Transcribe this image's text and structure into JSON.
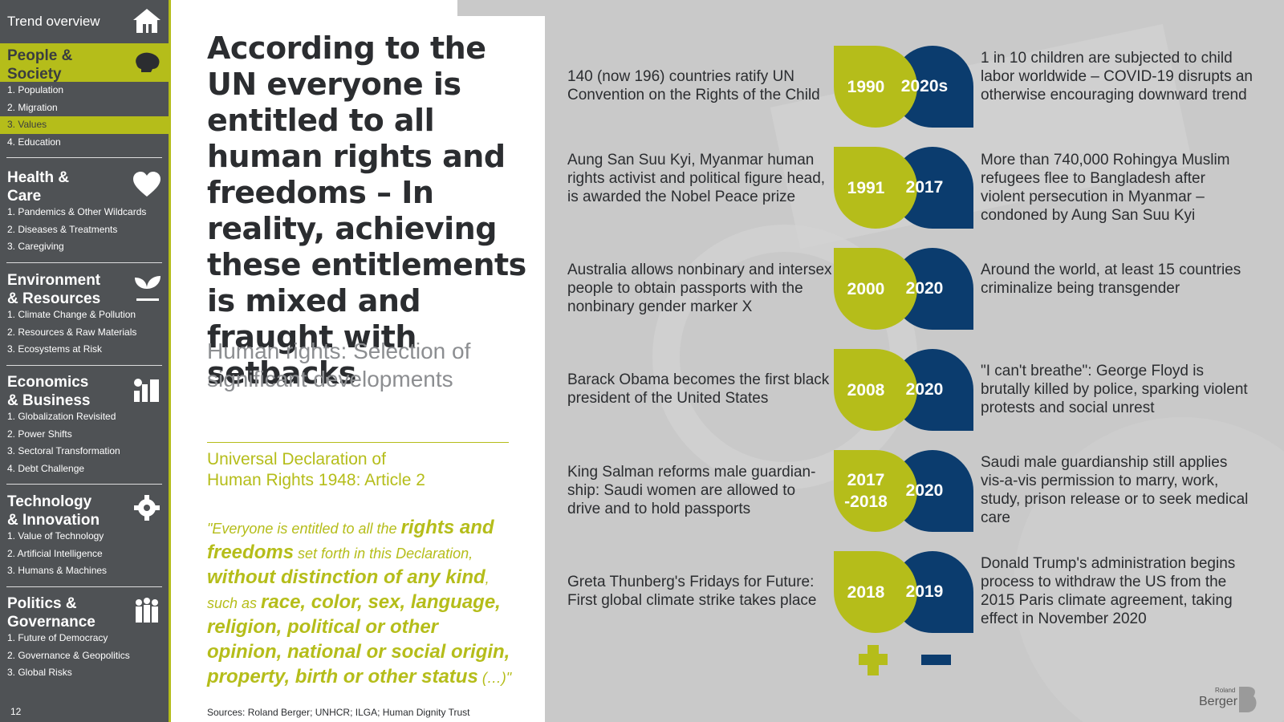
{
  "sidebar": {
    "top_label": "Trend overview",
    "page_number": "12",
    "sections": [
      {
        "title_1": "People &",
        "title_2": "Society",
        "icon": "head-icon",
        "items": [
          "1. Population",
          "2. Migration",
          "3. Values",
          "4. Education"
        ],
        "active_item": 2
      },
      {
        "title_1": "Health &",
        "title_2": "Care",
        "icon": "heart-icon",
        "items": [
          "1. Pandemics & Other Wildcards",
          "2. Diseases & Treatments",
          "3. Caregiving"
        ]
      },
      {
        "title_1": "Environment",
        "title_2": "& Resources",
        "icon": "leaf-icon",
        "items": [
          "1. Climate Change & Pollution",
          "2. Resources & Raw Materials",
          "3. Ecosystems at Risk"
        ]
      },
      {
        "title_1": "Economics",
        "title_2": "& Business",
        "icon": "business-icon",
        "items": [
          "1. Globalization Revisited",
          "2. Power Shifts",
          "3. Sectoral Transformation",
          "4. Debt Challenge"
        ]
      },
      {
        "title_1": "Technology",
        "title_2": "& Innovation",
        "icon": "gear-icon",
        "items": [
          "1. Value of Technology",
          "2. Artificial Intelligence",
          "3. Humans & Machines"
        ]
      },
      {
        "title_1": "Politics &",
        "title_2": "Governance",
        "icon": "people-icon",
        "items": [
          "1. Future of Democracy",
          "2. Governance & Geopolitics",
          "3. Global Risks"
        ]
      }
    ]
  },
  "main": {
    "headline": "According to the UN everyone is entitled to all human rights and freedoms – In reality, achieving these entitlements is mixed and fraught with setbacks",
    "subhead": "Human rights: Selection of significant developments",
    "declaration_title_1": "Universal Declaration of",
    "declaration_title_2": "Human Rights 1948: Article 2",
    "quote_parts": [
      "\"Everyone is entitled to all the ",
      "rights and freedoms",
      " set forth in this Declaration, ",
      "without distinction of any kind",
      ", such as ",
      "race, color, sex, language, religion, political or other opinion, national or social origin, property, birth or other status",
      " (…)\""
    ],
    "sources": "Sources: Roland Berger; UNHCR; ILGA; Human Dignity Trust"
  },
  "timeline": [
    {
      "positive_year": "1990",
      "negative_year": "2020s",
      "positive_text": "140 (now 196) countries ratify UN Convention on the Rights of the Child",
      "negative_text": "1 in 10 children are subjected to child labor worldwide – COVID-19 disrupts an otherwise encouraging downward trend"
    },
    {
      "positive_year": "1991",
      "negative_year": "2017",
      "positive_text": "Aung San Suu Kyi, Myanmar human rights activist and political figure head, is awarded the Nobel Peace prize",
      "negative_text": "More than 740,000 Rohingya Muslim refugees flee to Bangladesh after violent persecution in Myanmar – condoned by Aung San Suu Kyi"
    },
    {
      "positive_year": "2000",
      "negative_year": "2020",
      "positive_text": "Australia allows nonbinary and intersex people to obtain passports with the nonbinary gender marker X",
      "negative_text": "Around the world, at least 15 countries criminalize being transgender"
    },
    {
      "positive_year": "2008",
      "negative_year": "2020",
      "positive_text": "Barack Obama becomes the first black president of the United States",
      "negative_text": "\"I can't breathe\": George Floyd is brutally killed by police, sparking violent protests and social unrest"
    },
    {
      "positive_year": "2017 -2018",
      "negative_year": "2020",
      "positive_text": "King Salman reforms male guardian-ship: Saudi women are allowed to drive and to hold passports",
      "negative_text": "Saudi male guardianship still applies vis-a-vis permission to marry, work, study, prison release or to seek medical care"
    },
    {
      "positive_year": "2018",
      "negative_year": "2019",
      "positive_text": "Greta Thunberg's Fridays for Future: First global climate strike takes place",
      "negative_text": "Donald Trump's administration begins process to withdraw the US from the 2015 Paris climate agreement, taking effect in November 2020"
    }
  ],
  "legend": {
    "plus_icon": "plus-icon",
    "minus_icon": "minus-icon"
  },
  "logo": {
    "line1": "Roland",
    "line2": "Berger"
  },
  "colors": {
    "accent_yellow": "#b5bd1a",
    "accent_blue": "#0b3c6e",
    "sidebar": "#4f5255",
    "background_gray": "#c9c9c9"
  }
}
